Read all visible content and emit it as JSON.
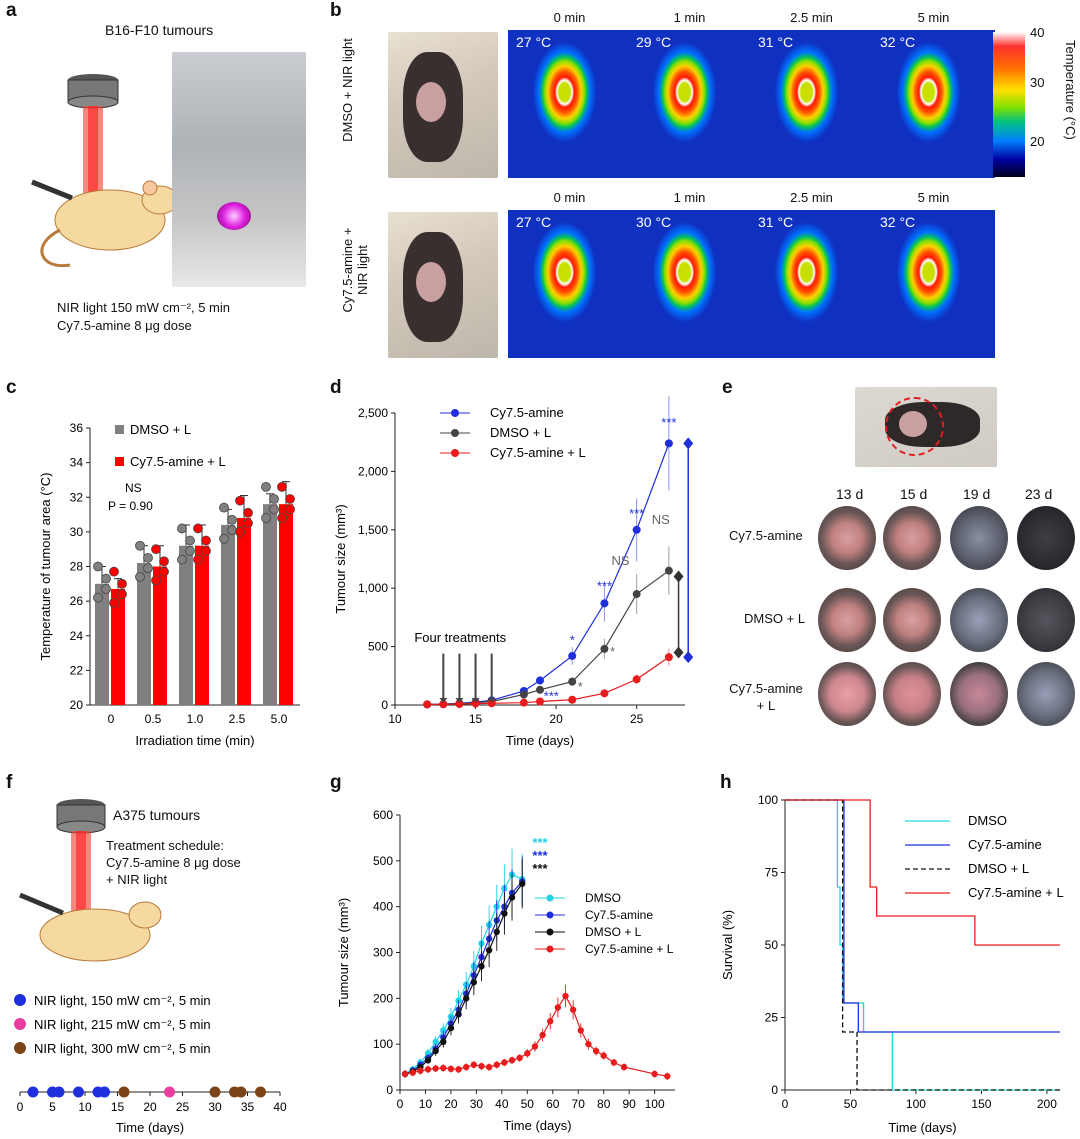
{
  "panels": {
    "a": {
      "label": "a",
      "title": "B16-F10 tumours",
      "line1": "NIR light 150 mW cm⁻², 5 min",
      "line2": "Cy7.5-amine 8 μg dose"
    },
    "b": {
      "label": "b",
      "row1": {
        "name": "DMSO + NIR light",
        "times": [
          "0 min",
          "1 min",
          "2.5 min",
          "5 min"
        ],
        "temps": [
          "27 °C",
          "29 °C",
          "31 °C",
          "32 °C"
        ]
      },
      "row2": {
        "name": "Cy7.5-amine + NIR light",
        "times": [
          "0 min",
          "1 min",
          "2.5 min",
          "5 min"
        ],
        "temps": [
          "27 °C",
          "30 °C",
          "31 °C",
          "32 °C"
        ]
      },
      "colorbar": {
        "label": "Temperature (°C)",
        "ticks": [
          "40",
          "30",
          "20"
        ]
      }
    },
    "c": {
      "label": "c"
    },
    "d": {
      "label": "d",
      "annotation": "Four treatments"
    },
    "e": {
      "label": "e",
      "days": [
        "13 d",
        "15 d",
        "19 d",
        "23 d"
      ],
      "rows": [
        "Cy7.5-amine",
        "DMSO + L",
        "Cy7.5-amine + L"
      ]
    },
    "f": {
      "label": "f",
      "title": "A375 tumours",
      "schedule": [
        "Treatment schedule:",
        "Cy7.5-amine 8 μg dose",
        "+ NIR light"
      ],
      "legend": [
        {
          "text": "NIR light, 150 mW cm⁻², 5 min",
          "color": "#1f2fdc"
        },
        {
          "text": "NIR light, 215 mW cm⁻², 5 min",
          "color": "#e83ea0"
        },
        {
          "text": "NIR light, 300 mW cm⁻², 5 min",
          "color": "#7a4418"
        }
      ],
      "xlabel": "Time (days)",
      "ticks": [
        "0",
        "5",
        "10",
        "15",
        "20",
        "25",
        "30",
        "35",
        "40"
      ]
    },
    "g": {
      "label": "g"
    },
    "h": {
      "label": "h"
    }
  },
  "chart_data": [
    {
      "panel": "c",
      "type": "bar",
      "xlabel": "Irradiation time (min)",
      "ylabel": "Temperature of tumour area (°C)",
      "categories": [
        "0",
        "0.5",
        "1.0",
        "2.5",
        "5.0"
      ],
      "ylim": [
        20,
        36
      ],
      "yticks": [
        "20",
        "22",
        "24",
        "26",
        "28",
        "30",
        "32",
        "34",
        "36"
      ],
      "series": [
        {
          "name": "DMSO + L",
          "color": "#808080",
          "values": [
            27.0,
            28.2,
            29.2,
            30.4,
            31.6
          ],
          "err": [
            1.0,
            1.0,
            1.2,
            0.9,
            0.6
          ]
        },
        {
          "name": "Cy7.5-amine + L",
          "color": "#ff0000",
          "values": [
            26.7,
            28.0,
            29.2,
            30.8,
            31.6
          ],
          "err": [
            0.6,
            1.2,
            1.2,
            1.3,
            1.3
          ]
        }
      ],
      "annotations": [
        "NS",
        "P = 0.90"
      ]
    },
    {
      "panel": "d",
      "type": "line",
      "xlabel": "Time (days)",
      "ylabel": "Tumour size (mm³)",
      "xlim": [
        10,
        28
      ],
      "ylim": [
        0,
        2500
      ],
      "xticks": [
        "10",
        "15",
        "20",
        "25"
      ],
      "yticks": [
        "0",
        "500",
        "1,000",
        "1,500",
        "2,000",
        "2,500"
      ],
      "x": [
        12,
        13,
        14,
        15,
        16,
        18,
        19,
        21,
        23,
        25,
        27
      ],
      "series": [
        {
          "name": "Cy7.5-amine",
          "color": "#1f2fdc",
          "values": [
            5,
            8,
            15,
            25,
            40,
            120,
            210,
            420,
            870,
            1500,
            2240
          ]
        },
        {
          "name": "DMSO + L",
          "color": "#444444",
          "values": [
            5,
            8,
            12,
            20,
            30,
            90,
            130,
            200,
            480,
            950,
            1150
          ]
        },
        {
          "name": "Cy7.5-amine + L",
          "color": "#e81c1c",
          "values": [
            5,
            6,
            8,
            12,
            15,
            20,
            30,
            45,
            100,
            220,
            410
          ]
        }
      ],
      "annotations": [
        "***",
        "***",
        "***",
        "*",
        "***",
        "NS",
        "NS",
        "*",
        "*"
      ]
    },
    {
      "panel": "g",
      "type": "line",
      "xlabel": "Time (days)",
      "ylabel": "Tumour size (mm³)",
      "xlim": [
        0,
        108
      ],
      "ylim": [
        0,
        600
      ],
      "xticks": [
        "0",
        "10",
        "20",
        "30",
        "40",
        "50",
        "60",
        "70",
        "80",
        "90",
        "100"
      ],
      "yticks": [
        "0",
        "100",
        "200",
        "300",
        "400",
        "500",
        "600"
      ],
      "series": [
        {
          "name": "DMSO",
          "color": "#22d3e6",
          "x": [
            2,
            5,
            8,
            11,
            14,
            17,
            20,
            23,
            26,
            29,
            32,
            35,
            38,
            41,
            44,
            48
          ],
          "values": [
            35,
            45,
            60,
            80,
            105,
            130,
            160,
            195,
            230,
            270,
            320,
            360,
            400,
            440,
            470,
            460
          ]
        },
        {
          "name": "Cy7.5-amine",
          "color": "#1f2fdc",
          "x": [
            2,
            5,
            8,
            11,
            14,
            17,
            20,
            23,
            26,
            29,
            32,
            35,
            38,
            41,
            44,
            48
          ],
          "values": [
            35,
            42,
            55,
            70,
            90,
            115,
            145,
            175,
            210,
            250,
            290,
            330,
            370,
            400,
            430,
            455
          ]
        },
        {
          "name": "DMSO + L",
          "color": "#111111",
          "x": [
            2,
            5,
            8,
            11,
            14,
            17,
            20,
            23,
            26,
            29,
            32,
            35,
            38,
            41,
            44,
            48
          ],
          "values": [
            35,
            40,
            50,
            65,
            85,
            105,
            135,
            165,
            200,
            235,
            270,
            305,
            345,
            385,
            420,
            450
          ]
        },
        {
          "name": "Cy7.5-amine + L",
          "color": "#e81c1c",
          "x": [
            2,
            5,
            8,
            11,
            14,
            17,
            20,
            23,
            26,
            29,
            32,
            35,
            38,
            41,
            44,
            47,
            50,
            53,
            56,
            59,
            62,
            65,
            68,
            71,
            74,
            77,
            80,
            84,
            88,
            100,
            105
          ],
          "values": [
            35,
            38,
            42,
            45,
            47,
            48,
            46,
            45,
            50,
            55,
            52,
            50,
            55,
            60,
            65,
            70,
            80,
            95,
            120,
            150,
            180,
            205,
            175,
            130,
            100,
            85,
            75,
            60,
            50,
            35,
            30
          ]
        }
      ],
      "annotations": [
        "***",
        "***",
        "***"
      ]
    },
    {
      "panel": "h",
      "type": "line",
      "xlabel": "Time (days)",
      "ylabel": "Survival (%)",
      "xlim": [
        0,
        210
      ],
      "ylim": [
        0,
        100
      ],
      "xticks": [
        "0",
        "50",
        "100",
        "150",
        "200"
      ],
      "yticks": [
        "0",
        "25",
        "50",
        "75",
        "100"
      ],
      "series": [
        {
          "name": "DMSO",
          "color": "#22d3e6",
          "steps": [
            [
              0,
              100
            ],
            [
              40,
              100
            ],
            [
              40,
              70
            ],
            [
              42,
              70
            ],
            [
              42,
              50
            ],
            [
              44,
              50
            ],
            [
              44,
              30
            ],
            [
              60,
              30
            ],
            [
              60,
              20
            ],
            [
              82,
              20
            ],
            [
              82,
              0
            ],
            [
              210,
              0
            ]
          ]
        },
        {
          "name": "Cy7.5-amine",
          "color": "#1f2fdc",
          "steps": [
            [
              0,
              100
            ],
            [
              45,
              100
            ],
            [
              45,
              30
            ],
            [
              56,
              30
            ],
            [
              56,
              20
            ],
            [
              210,
              20
            ]
          ]
        },
        {
          "name": "DMSO + L",
          "color": "#111111",
          "dash": true,
          "steps": [
            [
              0,
              100
            ],
            [
              44,
              100
            ],
            [
              44,
              20
            ],
            [
              55,
              20
            ],
            [
              55,
              0
            ],
            [
              210,
              0
            ]
          ]
        },
        {
          "name": "Cy7.5-amine + L",
          "color": "#e81c1c",
          "steps": [
            [
              0,
              100
            ],
            [
              65,
              100
            ],
            [
              65,
              70
            ],
            [
              70,
              70
            ],
            [
              70,
              60
            ],
            [
              145,
              60
            ],
            [
              145,
              50
            ],
            [
              210,
              50
            ]
          ]
        }
      ]
    }
  ]
}
